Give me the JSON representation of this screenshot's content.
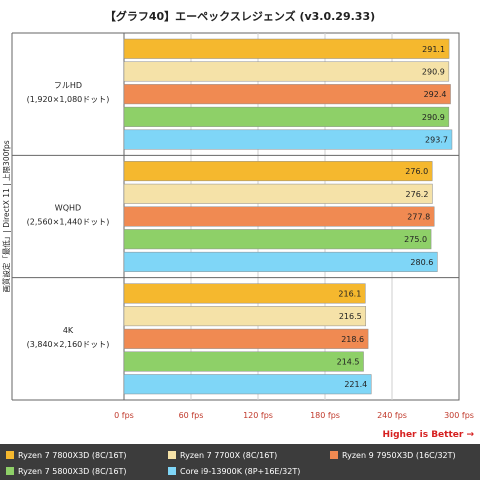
{
  "chart_data": {
    "type": "bar",
    "orientation": "horizontal",
    "title": "【グラフ40】エーペックスレジェンズ (v3.0.29.33)",
    "ylabel": "画質設定「最低」| DirectX 11 | 上限300fps",
    "xlim": [
      0,
      300
    ],
    "x_ticks": [
      "0 fps",
      "60 fps",
      "120 fps",
      "180 fps",
      "240 fps",
      "300 fps"
    ],
    "x_tick_values": [
      0,
      60,
      120,
      180,
      240,
      300
    ],
    "note": "Higher is Better →",
    "grid": true,
    "legend_position": "bottom",
    "categories": [
      {
        "name": "フルHD",
        "sub": "(1,920×1,080ドット)"
      },
      {
        "name": "WQHD",
        "sub": "(2,560×1,440ドット)"
      },
      {
        "name": "4K",
        "sub": "(3,840×2,160ドット)"
      }
    ],
    "series": [
      {
        "name": "Ryzen 7 7800X3D (8C/16T)",
        "color": "#f5b82e",
        "values": [
          291.1,
          276.0,
          216.1
        ]
      },
      {
        "name": "Ryzen 7 7700X (8C/16T)",
        "color": "#f5e2a8",
        "values": [
          290.9,
          276.2,
          216.5
        ]
      },
      {
        "name": "Ryzen 9 7950X3D (16C/32T)",
        "color": "#f08a52",
        "values": [
          292.4,
          277.8,
          218.6
        ]
      },
      {
        "name": "Ryzen 7 5800X3D (8C/16T)",
        "color": "#8ed068",
        "values": [
          290.9,
          275.0,
          214.5
        ]
      },
      {
        "name": "Core i9-13900K (8P+16E/32T)",
        "color": "#7fd6f7",
        "values": [
          293.7,
          280.6,
          221.4
        ]
      }
    ],
    "value_labels": [
      [
        "291.1",
        "276.0",
        "216.1"
      ],
      [
        "290.9",
        "276.2",
        "216.5"
      ],
      [
        "292.4",
        "277.8",
        "218.6"
      ],
      [
        "290.9",
        "275.0",
        "214.5"
      ],
      [
        "293.7",
        "280.6",
        "221.4"
      ]
    ]
  }
}
